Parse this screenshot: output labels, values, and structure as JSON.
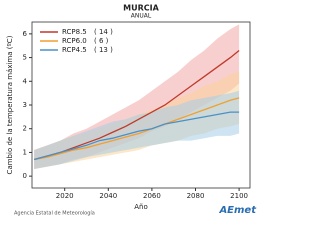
{
  "chart_data": {
    "type": "line",
    "title": "MURCIA",
    "subtitle": "ANUAL",
    "xlabel": "Año",
    "ylabel": "Cambio de la temperatura máxima (ºC)",
    "x": [
      2006,
      2012,
      2018,
      2024,
      2030,
      2036,
      2042,
      2048,
      2054,
      2060,
      2066,
      2072,
      2078,
      2084,
      2090,
      2096,
      2100
    ],
    "series": [
      {
        "name": "RCP8.5",
        "legend_count": "( 14 )",
        "color": "#c0392b",
        "band_color": "#f2a7a7",
        "values": [
          0.7,
          0.85,
          1.0,
          1.2,
          1.4,
          1.6,
          1.85,
          2.1,
          2.4,
          2.7,
          3.0,
          3.4,
          3.8,
          4.2,
          4.6,
          5.0,
          5.3
        ],
        "low": [
          0.3,
          0.4,
          0.5,
          0.7,
          0.8,
          1.0,
          1.2,
          1.4,
          1.6,
          1.9,
          2.1,
          2.4,
          2.7,
          3.0,
          3.3,
          3.6,
          3.9
        ],
        "high": [
          1.1,
          1.3,
          1.5,
          1.8,
          2.0,
          2.3,
          2.6,
          2.9,
          3.2,
          3.6,
          4.0,
          4.4,
          4.9,
          5.3,
          5.8,
          6.2,
          6.4
        ]
      },
      {
        "name": "RCP6.0",
        "legend_count": "(  6 )",
        "color": "#f0a030",
        "band_color": "#f9d49a",
        "values": [
          0.7,
          0.8,
          0.95,
          1.1,
          1.2,
          1.35,
          1.5,
          1.65,
          1.8,
          2.0,
          2.2,
          2.4,
          2.6,
          2.8,
          3.0,
          3.2,
          3.3
        ],
        "low": [
          0.3,
          0.4,
          0.5,
          0.6,
          0.7,
          0.8,
          0.9,
          1.0,
          1.1,
          1.3,
          1.4,
          1.5,
          1.7,
          1.8,
          2.0,
          2.1,
          2.2
        ],
        "high": [
          1.1,
          1.3,
          1.5,
          1.7,
          1.8,
          2.0,
          2.2,
          2.4,
          2.6,
          2.8,
          3.0,
          3.3,
          3.5,
          3.8,
          4.0,
          4.3,
          4.4
        ]
      },
      {
        "name": "RCP4.5",
        "legend_count": "( 13 )",
        "color": "#4a90c8",
        "band_color": "#a6cde8",
        "values": [
          0.7,
          0.85,
          1.0,
          1.15,
          1.3,
          1.5,
          1.6,
          1.75,
          1.9,
          2.0,
          2.2,
          2.3,
          2.4,
          2.5,
          2.6,
          2.7,
          2.7
        ],
        "low": [
          0.3,
          0.4,
          0.5,
          0.65,
          0.8,
          0.9,
          1.0,
          1.1,
          1.2,
          1.3,
          1.4,
          1.5,
          1.5,
          1.6,
          1.7,
          1.7,
          1.8
        ],
        "high": [
          1.1,
          1.3,
          1.5,
          1.7,
          1.9,
          2.1,
          2.3,
          2.4,
          2.6,
          2.7,
          2.9,
          3.0,
          3.2,
          3.3,
          3.4,
          3.5,
          3.6
        ]
      }
    ],
    "xlim": [
      2005,
      2105
    ],
    "xticks": [
      2020,
      2040,
      2060,
      2080,
      2100
    ],
    "ylim": [
      -0.5,
      6.5
    ],
    "yticks": [
      0,
      1,
      2,
      3,
      4,
      5,
      6
    ]
  },
  "footer": {
    "source": "Agencia Estatal de Meteorología",
    "logo": "AEmet"
  }
}
